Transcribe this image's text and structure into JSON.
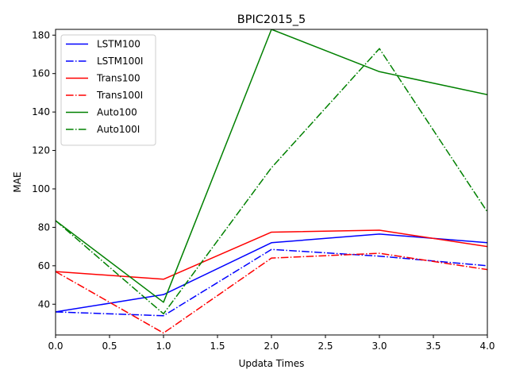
{
  "chart_data": {
    "type": "line",
    "title": "BPIC2015_5",
    "xlabel": "Updata Times",
    "ylabel": "MAE",
    "xlim": [
      0,
      4
    ],
    "ylim": [
      24,
      183
    ],
    "x_ticks": [
      "0.0",
      "0.5",
      "1.0",
      "1.5",
      "2.0",
      "2.5",
      "3.0",
      "3.5",
      "4.0"
    ],
    "y_ticks": [
      "40",
      "60",
      "80",
      "100",
      "120",
      "140",
      "160",
      "180"
    ],
    "x": [
      0,
      1,
      2,
      3,
      4
    ],
    "grid": false,
    "legend_position": "upper-left",
    "series": [
      {
        "name": "LSTM100",
        "color": "#0000ff",
        "style": "solid",
        "values": [
          36.0,
          45.0,
          72.0,
          76.5,
          72.0
        ]
      },
      {
        "name": "LSTM100I",
        "color": "#0000ff",
        "style": "dashdot",
        "values": [
          36.0,
          34.0,
          68.5,
          65.0,
          60.0
        ]
      },
      {
        "name": "Trans100",
        "color": "#ff0000",
        "style": "solid",
        "values": [
          57.0,
          53.0,
          77.5,
          78.5,
          70.0
        ]
      },
      {
        "name": "Trans100I",
        "color": "#ff0000",
        "style": "dashdot",
        "values": [
          57.0,
          25.0,
          64.0,
          66.5,
          58.0
        ]
      },
      {
        "name": "Auto100",
        "color": "#008000",
        "style": "solid",
        "values": [
          83.5,
          41.0,
          183.0,
          161.0,
          149.0
        ]
      },
      {
        "name": "Auto100I",
        "color": "#008000",
        "style": "dashdot",
        "values": [
          83.5,
          35.0,
          111.0,
          173.0,
          88.0
        ]
      }
    ]
  }
}
